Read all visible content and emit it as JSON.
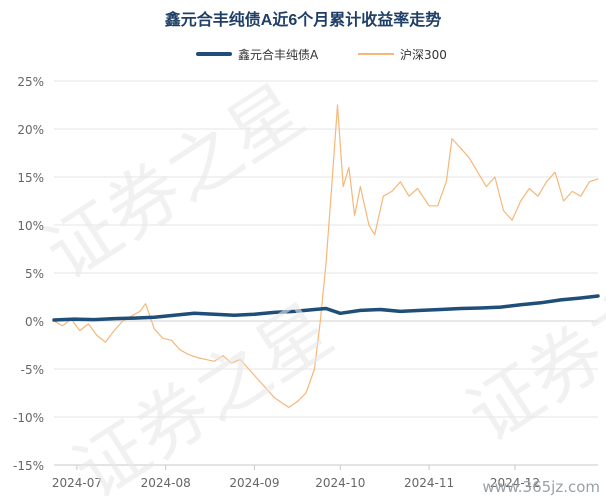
{
  "title": "鑫元合丰纯债A近6个月累计收益率走势",
  "watermark": "证券之星",
  "site_mark": "www.365jz.com",
  "chart_data": {
    "type": "line",
    "title": "鑫元合丰纯债A近6个月累计收益率走势",
    "xlabel": "",
    "ylabel": "",
    "ylim": [
      -15,
      25
    ],
    "y_ticks": [
      -15,
      -10,
      -5,
      0,
      5,
      10,
      15,
      20,
      25
    ],
    "y_tick_labels": [
      "-15%",
      "-10%",
      "-5%",
      "0%",
      "5%",
      "10%",
      "15%",
      "20%",
      "25%"
    ],
    "x_ticks": [
      {
        "date": "2024-07-01",
        "label": "2024-07"
      },
      {
        "date": "2024-08-01",
        "label": "2024-08"
      },
      {
        "date": "2024-09-01",
        "label": "2024-09"
      },
      {
        "date": "2024-10-01",
        "label": "2024-10"
      },
      {
        "date": "2024-11-01",
        "label": "2024-11"
      },
      {
        "date": "2024-12-01",
        "label": "2024-12"
      }
    ],
    "xlim": [
      "2024-06-23",
      "2024-12-30"
    ],
    "grid": true,
    "legend": "top-center",
    "series": [
      {
        "name": "鑫元合丰纯债A",
        "color": "#1f4e79",
        "points": [
          [
            "2024-06-23",
            0.1
          ],
          [
            "2024-06-30",
            0.2
          ],
          [
            "2024-07-07",
            0.15
          ],
          [
            "2024-07-14",
            0.25
          ],
          [
            "2024-07-21",
            0.3
          ],
          [
            "2024-07-28",
            0.4
          ],
          [
            "2024-08-04",
            0.6
          ],
          [
            "2024-08-11",
            0.8
          ],
          [
            "2024-08-18",
            0.7
          ],
          [
            "2024-08-25",
            0.6
          ],
          [
            "2024-09-01",
            0.7
          ],
          [
            "2024-09-08",
            0.9
          ],
          [
            "2024-09-15",
            1.0
          ],
          [
            "2024-09-22",
            1.2
          ],
          [
            "2024-09-26",
            1.3
          ],
          [
            "2024-10-01",
            0.8
          ],
          [
            "2024-10-08",
            1.1
          ],
          [
            "2024-10-15",
            1.2
          ],
          [
            "2024-10-22",
            1.0
          ],
          [
            "2024-10-29",
            1.1
          ],
          [
            "2024-11-05",
            1.2
          ],
          [
            "2024-11-12",
            1.3
          ],
          [
            "2024-11-19",
            1.35
          ],
          [
            "2024-11-26",
            1.45
          ],
          [
            "2024-12-03",
            1.7
          ],
          [
            "2024-12-10",
            1.9
          ],
          [
            "2024-12-17",
            2.2
          ],
          [
            "2024-12-24",
            2.4
          ],
          [
            "2024-12-30",
            2.6
          ]
        ]
      },
      {
        "name": "沪深300",
        "color": "#f5b77a",
        "points": [
          [
            "2024-06-23",
            0.0
          ],
          [
            "2024-06-26",
            -0.5
          ],
          [
            "2024-06-29",
            0.2
          ],
          [
            "2024-07-02",
            -1.0
          ],
          [
            "2024-07-05",
            -0.3
          ],
          [
            "2024-07-08",
            -1.5
          ],
          [
            "2024-07-11",
            -2.2
          ],
          [
            "2024-07-14",
            -1.0
          ],
          [
            "2024-07-17",
            0.0
          ],
          [
            "2024-07-20",
            0.5
          ],
          [
            "2024-07-23",
            1.0
          ],
          [
            "2024-07-25",
            1.8
          ],
          [
            "2024-07-28",
            -0.8
          ],
          [
            "2024-07-31",
            -1.8
          ],
          [
            "2024-08-03",
            -2.0
          ],
          [
            "2024-08-06",
            -3.0
          ],
          [
            "2024-08-09",
            -3.5
          ],
          [
            "2024-08-12",
            -3.8
          ],
          [
            "2024-08-15",
            -4.0
          ],
          [
            "2024-08-18",
            -4.2
          ],
          [
            "2024-08-21",
            -3.6
          ],
          [
            "2024-08-24",
            -4.4
          ],
          [
            "2024-08-27",
            -4.0
          ],
          [
            "2024-08-30",
            -5.0
          ],
          [
            "2024-09-02",
            -6.0
          ],
          [
            "2024-09-05",
            -7.0
          ],
          [
            "2024-09-08",
            -8.0
          ],
          [
            "2024-09-11",
            -8.6
          ],
          [
            "2024-09-13",
            -9.0
          ],
          [
            "2024-09-16",
            -8.4
          ],
          [
            "2024-09-19",
            -7.5
          ],
          [
            "2024-09-22",
            -5.0
          ],
          [
            "2024-09-24",
            0.0
          ],
          [
            "2024-09-26",
            6.0
          ],
          [
            "2024-09-28",
            14.0
          ],
          [
            "2024-09-30",
            22.5
          ],
          [
            "2024-10-02",
            14.0
          ],
          [
            "2024-10-04",
            16.0
          ],
          [
            "2024-10-06",
            11.0
          ],
          [
            "2024-10-08",
            14.0
          ],
          [
            "2024-10-11",
            10.0
          ],
          [
            "2024-10-13",
            9.0
          ],
          [
            "2024-10-16",
            13.0
          ],
          [
            "2024-10-19",
            13.5
          ],
          [
            "2024-10-22",
            14.5
          ],
          [
            "2024-10-25",
            13.0
          ],
          [
            "2024-10-28",
            13.8
          ],
          [
            "2024-11-01",
            12.0
          ],
          [
            "2024-11-04",
            12.0
          ],
          [
            "2024-11-07",
            14.5
          ],
          [
            "2024-11-09",
            19.0
          ],
          [
            "2024-11-12",
            18.0
          ],
          [
            "2024-11-15",
            17.0
          ],
          [
            "2024-11-18",
            15.5
          ],
          [
            "2024-11-21",
            14.0
          ],
          [
            "2024-11-24",
            15.0
          ],
          [
            "2024-11-27",
            11.5
          ],
          [
            "2024-11-30",
            10.5
          ],
          [
            "2024-12-03",
            12.5
          ],
          [
            "2024-12-06",
            13.8
          ],
          [
            "2024-12-09",
            13.0
          ],
          [
            "2024-12-12",
            14.5
          ],
          [
            "2024-12-15",
            15.5
          ],
          [
            "2024-12-18",
            12.5
          ],
          [
            "2024-12-21",
            13.5
          ],
          [
            "2024-12-24",
            13.0
          ],
          [
            "2024-12-27",
            14.5
          ],
          [
            "2024-12-30",
            14.8
          ]
        ]
      }
    ]
  }
}
